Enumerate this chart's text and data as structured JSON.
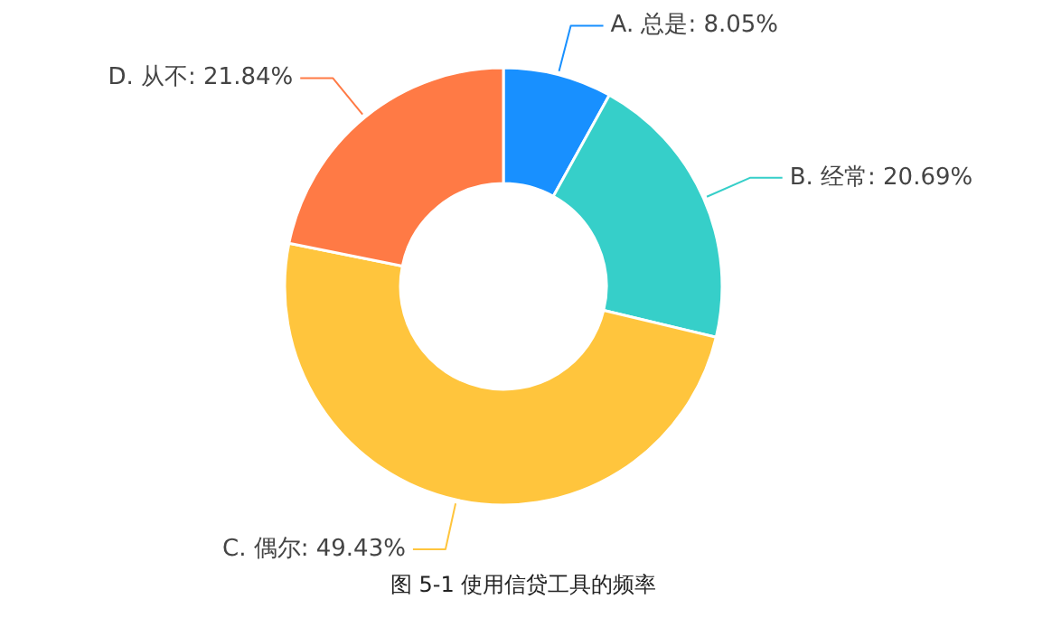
{
  "chart_data": {
    "type": "donut",
    "title": "图 5-1  使用信贷工具的频率",
    "categories": [
      "A. 总是",
      "B. 经常",
      "C. 偶尔",
      "D. 从不"
    ],
    "values": [
      8.05,
      20.69,
      49.43,
      21.84
    ],
    "value_labels": [
      "8.05%",
      "20.69%",
      "49.43%",
      "21.84%"
    ],
    "colors": [
      "#1890ff",
      "#36cfc9",
      "#ffc53d",
      "#ff7a45"
    ]
  }
}
